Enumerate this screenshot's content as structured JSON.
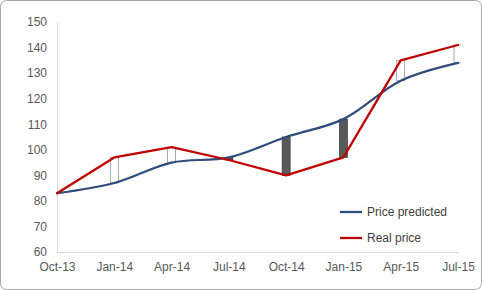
{
  "chart_data": {
    "type": "line",
    "categories": [
      "Oct-13",
      "Jan-14",
      "Apr-14",
      "Jul-14",
      "Oct-14",
      "Jan-15",
      "Apr-15",
      "Jul-15"
    ],
    "series": [
      {
        "name": "Price predicted",
        "color": "#2e4d7b",
        "line_style": "smooth",
        "values": [
          83,
          87,
          95,
          97,
          105,
          112,
          127,
          134
        ]
      },
      {
        "name": "Real price",
        "color": "#c00000",
        "line_style": "solid",
        "values": [
          83,
          97,
          101,
          96,
          90,
          97,
          135,
          141
        ]
      }
    ],
    "ylim": [
      60,
      150
    ],
    "yticks": [
      60,
      70,
      80,
      90,
      100,
      110,
      120,
      130,
      140,
      150
    ],
    "grid": false,
    "legend": "lower right"
  }
}
